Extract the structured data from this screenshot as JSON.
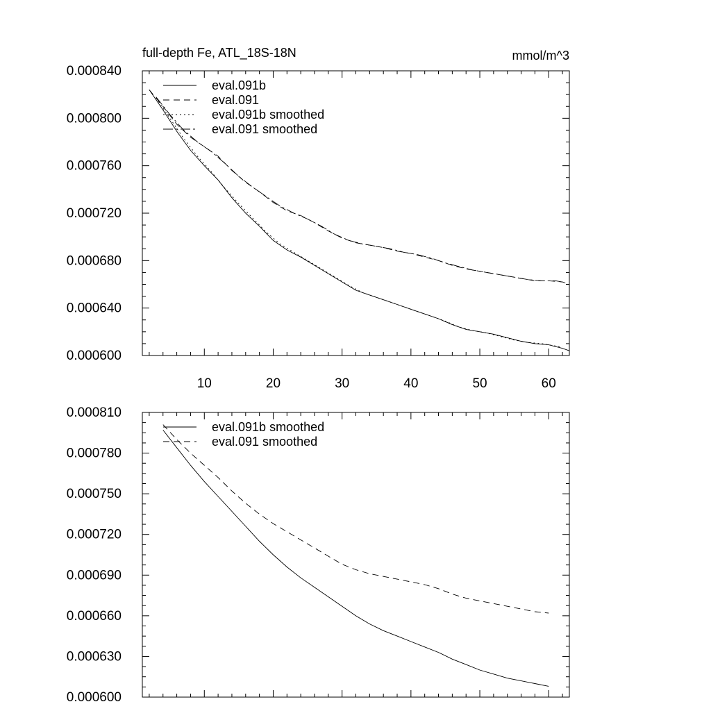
{
  "chart_data": [
    {
      "type": "line",
      "title": "full-depth Fe, ATL_18S-18N",
      "units": "mmol/m^3",
      "xlim": [
        1,
        63
      ],
      "ylim": [
        0.0006,
        0.00084
      ],
      "xticks": [
        "10",
        "20",
        "30",
        "40",
        "50",
        "60"
      ],
      "yticks": [
        "0.000600",
        "0.000640",
        "0.000680",
        "0.000720",
        "0.000760",
        "0.000800",
        "0.000840"
      ],
      "legend_position": "top-left",
      "series": [
        {
          "name": "eval.091b",
          "dash": "",
          "x": [
            2,
            4,
            6,
            8,
            10,
            12,
            14,
            16,
            18,
            20,
            22,
            24,
            26,
            28,
            30,
            32,
            34,
            36,
            38,
            40,
            42,
            44,
            46,
            48,
            50,
            52,
            54,
            56,
            58,
            60,
            62,
            63
          ],
          "y": [
            0.000824,
            0.000807,
            0.000789,
            0.000773,
            0.00076,
            0.000748,
            0.000733,
            0.00072,
            0.000709,
            0.000697,
            0.000689,
            0.000683,
            0.000676,
            0.000669,
            0.000662,
            0.000655,
            0.000651,
            0.000647,
            0.000643,
            0.000639,
            0.000635,
            0.000631,
            0.000626,
            0.000622,
            0.00062,
            0.000618,
            0.000615,
            0.000612,
            0.00061,
            0.000609,
            0.000606,
            0.000604
          ]
        },
        {
          "name": "eval.091",
          "dash": "9,6",
          "x": [
            2,
            4,
            6,
            8,
            10,
            12,
            14,
            16,
            18,
            20,
            22,
            24,
            26,
            28,
            30,
            32,
            34,
            36,
            38,
            40,
            42,
            44,
            46,
            48,
            50,
            52,
            54,
            56,
            58,
            60,
            62,
            63
          ],
          "y": [
            0.000824,
            0.00081,
            0.000795,
            0.000784,
            0.000776,
            0.000768,
            0.000756,
            0.000746,
            0.000738,
            0.000729,
            0.000722,
            0.000718,
            0.000712,
            0.000705,
            0.000699,
            0.000695,
            0.000693,
            0.000691,
            0.000688,
            0.000686,
            0.000683,
            0.00068,
            0.000676,
            0.000673,
            0.000671,
            0.000669,
            0.000667,
            0.000665,
            0.000663,
            0.000663,
            0.000662,
            0.00066
          ]
        },
        {
          "name": "eval.091b smoothed",
          "dash": "2,4",
          "x": [
            3,
            5,
            7,
            9,
            11,
            13,
            15,
            17,
            19,
            21,
            23,
            25,
            27,
            29,
            31,
            33,
            35,
            37,
            39,
            41,
            43,
            45,
            47,
            49,
            51,
            53,
            55,
            57,
            59,
            61,
            62
          ],
          "y": [
            0.000817,
            0.0008,
            0.000783,
            0.000768,
            0.000755,
            0.000741,
            0.000728,
            0.000716,
            0.000704,
            0.000694,
            0.000687,
            0.00068,
            0.000673,
            0.000666,
            0.000659,
            0.000653,
            0.000649,
            0.000645,
            0.000641,
            0.000637,
            0.000633,
            0.000629,
            0.000624,
            0.000621,
            0.000619,
            0.000616,
            0.000613,
            0.000611,
            0.00061,
            0.000608,
            0.000607
          ]
        },
        {
          "name": "eval.091 smoothed",
          "dash": "14,4,3,4",
          "x": [
            3,
            5,
            7,
            9,
            11,
            13,
            15,
            17,
            19,
            21,
            23,
            25,
            27,
            29,
            31,
            33,
            35,
            37,
            39,
            41,
            43,
            45,
            47,
            49,
            51,
            53,
            55,
            57,
            59,
            61,
            62
          ],
          "y": [
            0.000818,
            0.000803,
            0.00079,
            0.00078,
            0.000772,
            0.000762,
            0.000751,
            0.000742,
            0.000734,
            0.000726,
            0.00072,
            0.000715,
            0.000709,
            0.000702,
            0.000697,
            0.000694,
            0.000692,
            0.00069,
            0.000687,
            0.000685,
            0.000682,
            0.000678,
            0.000675,
            0.000672,
            0.00067,
            0.000668,
            0.000666,
            0.000664,
            0.000663,
            0.000663,
            0.000662
          ]
        }
      ]
    },
    {
      "type": "line",
      "xlim": [
        1,
        63
      ],
      "ylim": [
        0.0006,
        0.00081
      ],
      "yticks": [
        "0.000600",
        "0.000630",
        "0.000660",
        "0.000690",
        "0.000720",
        "0.000750",
        "0.000780",
        "0.000810"
      ],
      "legend_position": "top-left",
      "series": [
        {
          "name": "eval.091b smoothed",
          "dash": "",
          "x": [
            4,
            6,
            8,
            10,
            12,
            14,
            16,
            18,
            20,
            22,
            24,
            26,
            28,
            30,
            32,
            34,
            36,
            38,
            40,
            42,
            44,
            46,
            48,
            50,
            52,
            54,
            56,
            58,
            60
          ],
          "y": [
            0.000797,
            0.000784,
            0.000771,
            0.000759,
            0.000748,
            0.000737,
            0.000726,
            0.000715,
            0.000705,
            0.000696,
            0.000688,
            0.000681,
            0.000674,
            0.000667,
            0.00066,
            0.000654,
            0.000649,
            0.000645,
            0.000641,
            0.000637,
            0.000633,
            0.000628,
            0.000624,
            0.00062,
            0.000617,
            0.000614,
            0.000612,
            0.00061,
            0.000608
          ]
        },
        {
          "name": "eval.091 smoothed",
          "dash": "9,6",
          "x": [
            4,
            6,
            8,
            10,
            12,
            14,
            16,
            18,
            20,
            22,
            24,
            26,
            28,
            30,
            32,
            34,
            36,
            38,
            40,
            42,
            44,
            46,
            48,
            50,
            52,
            54,
            56,
            58,
            60
          ],
          "y": [
            0.000801,
            0.00079,
            0.00078,
            0.000771,
            0.000762,
            0.000752,
            0.000743,
            0.000735,
            0.000728,
            0.000722,
            0.000716,
            0.00071,
            0.000704,
            0.000698,
            0.000694,
            0.000691,
            0.000689,
            0.000687,
            0.000685,
            0.000683,
            0.00068,
            0.000676,
            0.000673,
            0.000671,
            0.000669,
            0.000667,
            0.000665,
            0.000663,
            0.000662
          ]
        }
      ]
    }
  ]
}
